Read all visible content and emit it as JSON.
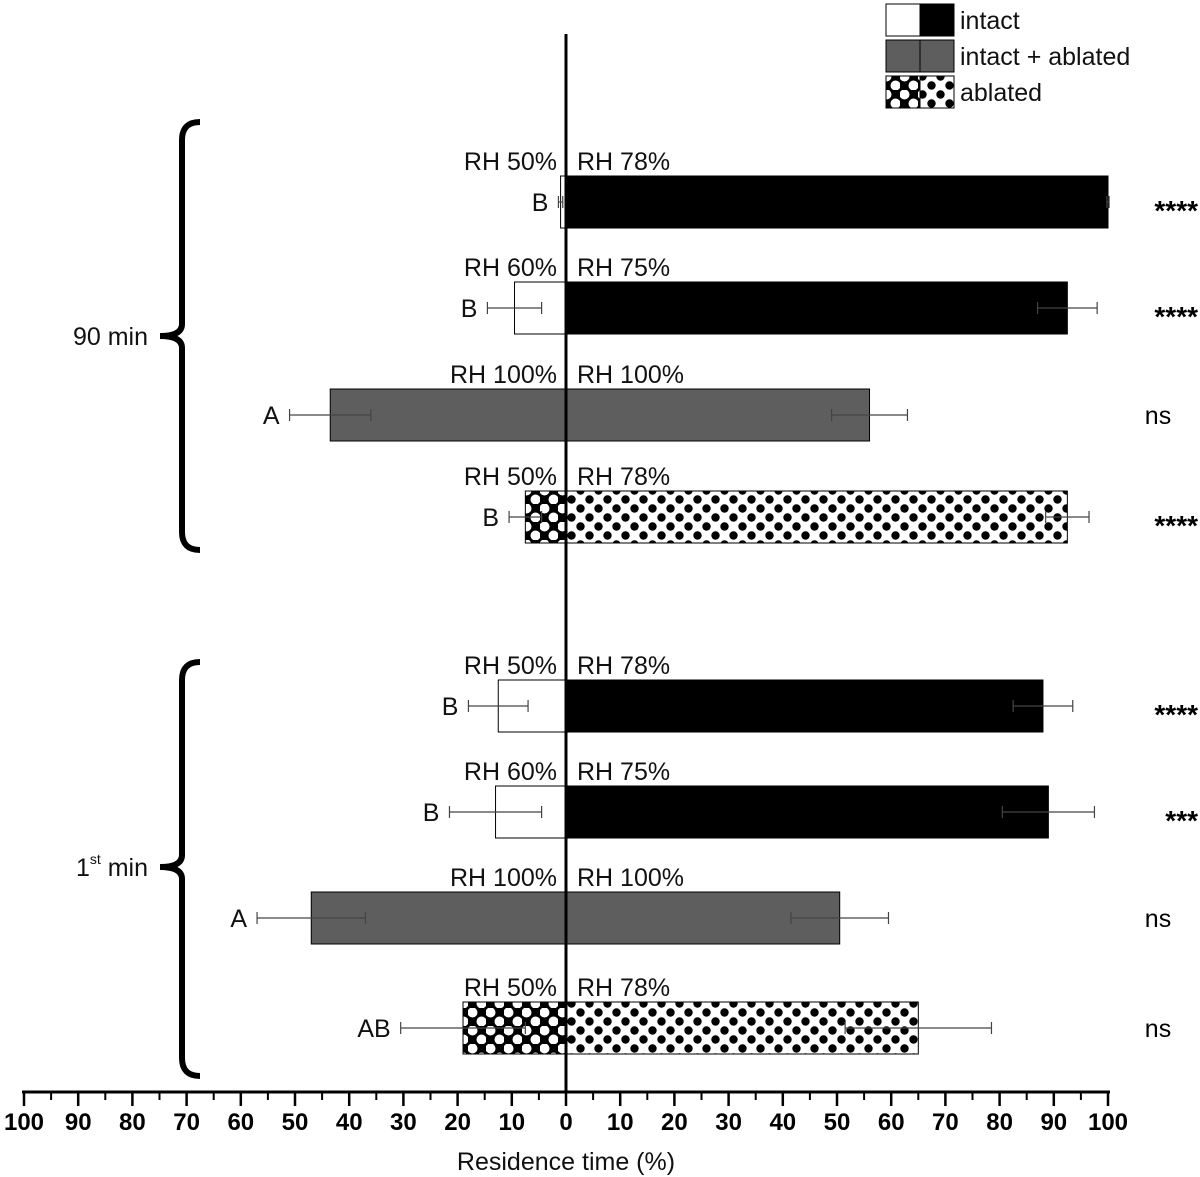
{
  "chart_data": {
    "type": "bar",
    "orientation": "horizontal",
    "xlabel": "Residence time (%)",
    "xlim": [
      -100,
      100
    ],
    "tick_labels": [
      "100",
      "90",
      "80",
      "70",
      "60",
      "50",
      "40",
      "30",
      "20",
      "10",
      "0",
      "10",
      "20",
      "30",
      "40",
      "50",
      "60",
      "70",
      "80",
      "90",
      "100"
    ],
    "legend": {
      "placement": "top-right",
      "entries": [
        {
          "key": "intact",
          "label": "intact"
        },
        {
          "key": "intact_ablated",
          "label": "intact + ablated"
        },
        {
          "key": "ablated",
          "label": "ablated"
        }
      ]
    },
    "groups": [
      {
        "label": "90 min",
        "label_main": "90",
        "label_sup": "",
        "label_rest": " min",
        "rows": [
          {
            "treatment": "intact",
            "left_rh": "RH 50%",
            "right_rh": "RH 78%",
            "left_value": 1.0,
            "left_err": 0.4,
            "right_value": 100.0,
            "right_err": 0.2,
            "letter": "B",
            "significance": "****"
          },
          {
            "treatment": "intact",
            "left_rh": "RH 60%",
            "right_rh": "RH 75%",
            "left_value": 9.5,
            "left_err": 5.0,
            "right_value": 92.5,
            "right_err": 5.5,
            "letter": "B",
            "significance": "****"
          },
          {
            "treatment": "intact_ablated",
            "left_rh": "RH 100%",
            "right_rh": "RH 100%",
            "left_value": 43.5,
            "left_err": 7.5,
            "right_value": 56.0,
            "right_err": 7.0,
            "letter": "A",
            "significance": "ns"
          },
          {
            "treatment": "ablated",
            "left_rh": "RH 50%",
            "right_rh": "RH 78%",
            "left_value": 7.5,
            "left_err": 3.0,
            "right_value": 92.5,
            "right_err": 4.0,
            "letter": "B",
            "significance": "****"
          }
        ]
      },
      {
        "label": "1st min",
        "label_main": "1",
        "label_sup": "st",
        "label_rest": " min",
        "rows": [
          {
            "treatment": "intact",
            "left_rh": "RH 50%",
            "right_rh": "RH 78%",
            "left_value": 12.5,
            "left_err": 5.5,
            "right_value": 88.0,
            "right_err": 5.5,
            "letter": "B",
            "significance": "****"
          },
          {
            "treatment": "intact",
            "left_rh": "RH 60%",
            "right_rh": "RH 75%",
            "left_value": 13.0,
            "left_err": 8.5,
            "right_value": 89.0,
            "right_err": 8.5,
            "letter": "B",
            "significance": "***"
          },
          {
            "treatment": "intact_ablated",
            "left_rh": "RH 100%",
            "right_rh": "RH 100%",
            "left_value": 47.0,
            "left_err": 10.0,
            "right_value": 50.5,
            "right_err": 9.0,
            "letter": "A",
            "significance": "ns"
          },
          {
            "treatment": "ablated",
            "left_rh": "RH 50%",
            "right_rh": "RH 78%",
            "left_value": 19.0,
            "left_err": 11.5,
            "right_value": 65.0,
            "right_err": 13.5,
            "letter": "AB",
            "significance": "ns"
          }
        ]
      }
    ]
  }
}
